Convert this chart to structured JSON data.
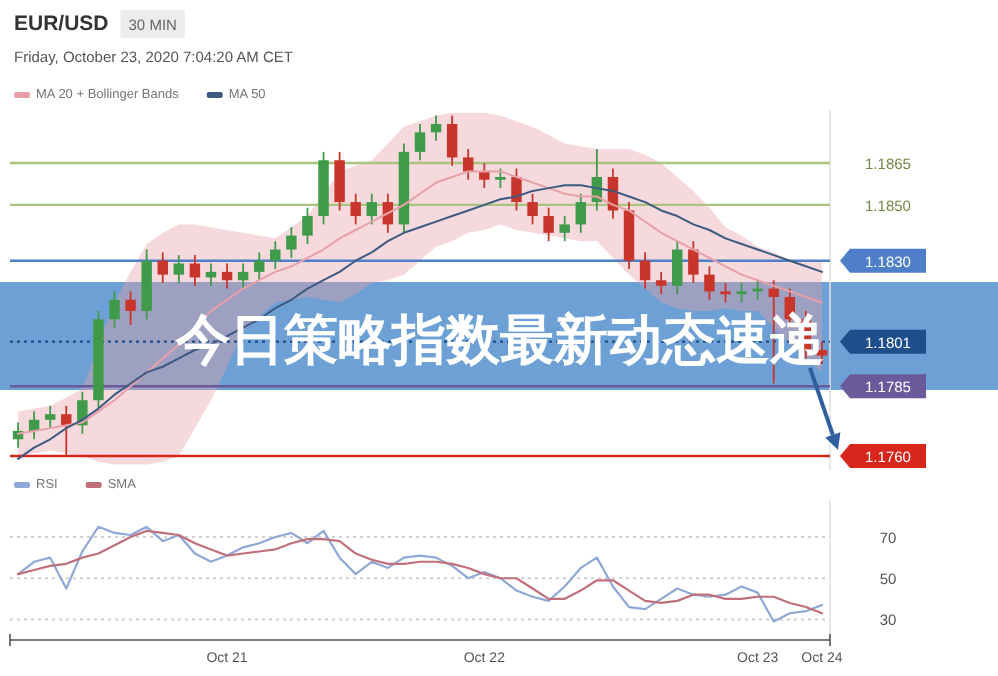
{
  "chart_data": [
    {
      "type": "candlestick",
      "title": "EUR/USD",
      "subtitle": "Friday, October 23, 2020 7:04:20 AM CET",
      "annotations": [
        "30 MIN",
        "今日策略指数最新动态速递"
      ],
      "categories": [
        null,
        null,
        null,
        null,
        null,
        null,
        null,
        null,
        null,
        null,
        null,
        null,
        null,
        null,
        null,
        null,
        null,
        null,
        null,
        null,
        null,
        null,
        null,
        null,
        null,
        null,
        null,
        null,
        null,
        null,
        null,
        null,
        null,
        null,
        null,
        null,
        null,
        null,
        null,
        null,
        null,
        null,
        null,
        null,
        null,
        null,
        null,
        null,
        null,
        null,
        null
      ],
      "ohlc": [
        [
          1.1766,
          1.1772,
          1.1763,
          1.1769
        ],
        [
          1.1769,
          1.1776,
          1.1766,
          1.1773
        ],
        [
          1.1773,
          1.1778,
          1.177,
          1.1775
        ],
        [
          1.1775,
          1.1778,
          1.176,
          1.1771
        ],
        [
          1.1771,
          1.1783,
          1.1768,
          1.178
        ],
        [
          1.178,
          1.1812,
          1.1777,
          1.1809
        ],
        [
          1.1809,
          1.1819,
          1.1806,
          1.1816
        ],
        [
          1.1816,
          1.1819,
          1.1807,
          1.1812
        ],
        [
          1.1812,
          1.1834,
          1.1809,
          1.183
        ],
        [
          1.183,
          1.1833,
          1.1822,
          1.1825
        ],
        [
          1.1825,
          1.1832,
          1.1822,
          1.1829
        ],
        [
          1.1829,
          1.1832,
          1.1821,
          1.1824
        ],
        [
          1.1824,
          1.1829,
          1.1821,
          1.1826
        ],
        [
          1.1826,
          1.1829,
          1.182,
          1.1823
        ],
        [
          1.1823,
          1.1829,
          1.182,
          1.1826
        ],
        [
          1.1826,
          1.1833,
          1.1823,
          1.183
        ],
        [
          1.183,
          1.1837,
          1.1827,
          1.1834
        ],
        [
          1.1834,
          1.1842,
          1.1831,
          1.1839
        ],
        [
          1.1839,
          1.1849,
          1.1836,
          1.1846
        ],
        [
          1.1846,
          1.1869,
          1.1843,
          1.1866
        ],
        [
          1.1866,
          1.1869,
          1.1848,
          1.1851
        ],
        [
          1.1851,
          1.1854,
          1.1843,
          1.1846
        ],
        [
          1.1846,
          1.1854,
          1.1843,
          1.1851
        ],
        [
          1.1851,
          1.1854,
          1.184,
          1.1843
        ],
        [
          1.1843,
          1.1872,
          1.184,
          1.1869
        ],
        [
          1.1869,
          1.1879,
          1.1866,
          1.1876
        ],
        [
          1.1876,
          1.1882,
          1.1873,
          1.1879
        ],
        [
          1.1879,
          1.1882,
          1.1864,
          1.1867
        ],
        [
          1.1867,
          1.187,
          1.1859,
          1.1862
        ],
        [
          1.1862,
          1.1865,
          1.1856,
          1.1859
        ],
        [
          1.1859,
          1.1863,
          1.1856,
          1.186
        ],
        [
          1.186,
          1.1863,
          1.1848,
          1.1851
        ],
        [
          1.1851,
          1.1854,
          1.1843,
          1.1846
        ],
        [
          1.1846,
          1.1849,
          1.1837,
          1.184
        ],
        [
          1.184,
          1.1846,
          1.1837,
          1.1843
        ],
        [
          1.1843,
          1.1854,
          1.184,
          1.1851
        ],
        [
          1.1851,
          1.187,
          1.1848,
          1.186
        ],
        [
          1.186,
          1.1863,
          1.1845,
          1.1848
        ],
        [
          1.1848,
          1.1851,
          1.1827,
          1.183
        ],
        [
          1.183,
          1.1833,
          1.182,
          1.1823
        ],
        [
          1.1823,
          1.1826,
          1.1818,
          1.1821
        ],
        [
          1.1821,
          1.1837,
          1.1818,
          1.1834
        ],
        [
          1.1834,
          1.1837,
          1.1822,
          1.1825
        ],
        [
          1.1825,
          1.1828,
          1.1816,
          1.1819
        ],
        [
          1.1819,
          1.1822,
          1.1815,
          1.1818
        ],
        [
          1.1818,
          1.1822,
          1.1815,
          1.1819
        ],
        [
          1.1819,
          1.1823,
          1.1816,
          1.182
        ],
        [
          1.182,
          1.1823,
          1.1786,
          1.1817
        ],
        [
          1.1817,
          1.182,
          1.1806,
          1.1809
        ],
        [
          1.1809,
          1.1812,
          1.1795,
          1.1798
        ],
        [
          1.1798,
          1.1801,
          1.1793,
          1.1796
        ]
      ],
      "series": [
        {
          "name": "MA 20 + Bollinger Bands",
          "type": "line",
          "color": "#e8a0a8",
          "values": [
            1.1768,
            1.1769,
            1.177,
            1.1771,
            1.1772,
            1.1776,
            1.178,
            1.1785,
            1.179,
            1.1795,
            1.18,
            1.1806,
            1.1812,
            1.1816,
            1.182,
            1.1823,
            1.1826,
            1.1828,
            1.1831,
            1.1834,
            1.1838,
            1.1841,
            1.1844,
            1.1847,
            1.185,
            1.1854,
            1.1858,
            1.186,
            1.1862,
            1.1862,
            1.1862,
            1.186,
            1.1858,
            1.1856,
            1.1854,
            1.1853,
            1.1853,
            1.185,
            1.1848,
            1.1844,
            1.184,
            1.1837,
            1.1834,
            1.1831,
            1.1828,
            1.1825,
            1.1823,
            1.1821,
            1.1819,
            1.1817,
            1.1815
          ],
          "upper": [
            1.1776,
            1.1777,
            1.1778,
            1.1781,
            1.1784,
            1.18,
            1.1815,
            1.1826,
            1.1836,
            1.184,
            1.1843,
            1.1843,
            1.1842,
            1.1841,
            1.184,
            1.1839,
            1.1838,
            1.1842,
            1.1846,
            1.1854,
            1.1862,
            1.1864,
            1.1866,
            1.1872,
            1.1878,
            1.188,
            1.1882,
            1.1883,
            1.1883,
            1.1883,
            1.1882,
            1.188,
            1.1878,
            1.1875,
            1.1872,
            1.1871,
            1.187,
            1.187,
            1.187,
            1.1868,
            1.1865,
            1.186,
            1.1855,
            1.1849,
            1.1842,
            1.1839,
            1.1835,
            1.1833,
            1.183,
            1.183,
            1.183
          ],
          "lower": [
            1.176,
            1.1761,
            1.1762,
            1.1761,
            1.176,
            1.1758,
            1.1757,
            1.1757,
            1.1757,
            1.1758,
            1.176,
            1.177,
            1.178,
            1.1792,
            1.1805,
            1.181,
            1.1815,
            1.1816,
            1.1817,
            1.1816,
            1.1815,
            1.1818,
            1.1822,
            1.1823,
            1.1825,
            1.183,
            1.1835,
            1.1837,
            1.184,
            1.1841,
            1.1843,
            1.1841,
            1.184,
            1.1839,
            1.1838,
            1.1837,
            1.1837,
            1.1831,
            1.1825,
            1.182,
            1.1815,
            1.1813,
            1.1812,
            1.1812,
            1.1813,
            1.1812,
            1.1812,
            1.1806,
            1.18,
            1.1795,
            1.179
          ]
        },
        {
          "name": "MA 50",
          "type": "line",
          "color": "#3d5a80",
          "values": [
            1.1759,
            1.1763,
            1.1766,
            1.177,
            1.1773,
            1.1777,
            1.1782,
            1.1786,
            1.179,
            1.1792,
            1.1795,
            1.1798,
            1.18,
            1.1803,
            1.1806,
            1.1809,
            1.1813,
            1.1816,
            1.182,
            1.1823,
            1.1826,
            1.183,
            1.1833,
            1.1837,
            1.184,
            1.1842,
            1.1844,
            1.1846,
            1.1848,
            1.185,
            1.1852,
            1.1853,
            1.1855,
            1.1856,
            1.1857,
            1.1857,
            1.1856,
            1.1855,
            1.1853,
            1.1851,
            1.1848,
            1.1846,
            1.1843,
            1.1841,
            1.1838,
            1.1836,
            1.1834,
            1.1832,
            1.183,
            1.1828,
            1.1826
          ]
        }
      ],
      "ref_lines": [
        {
          "axis": "y",
          "value": 1.1865,
          "color": "#a9c47f"
        },
        {
          "axis": "y",
          "value": 1.185,
          "color": "#a9c47f"
        },
        {
          "axis": "y",
          "value": 1.183,
          "color": "#4f7fc8"
        },
        {
          "axis": "y",
          "value": 1.1801,
          "color": "#1f4e8c",
          "line_style": "dotted"
        },
        {
          "axis": "y",
          "value": 1.1785,
          "color": "#6a5a9a"
        },
        {
          "axis": "y",
          "value": 1.176,
          "color": "#d9261c"
        }
      ],
      "ylim": [
        1.1755,
        1.1884
      ],
      "yticks": [
        1.1865,
        {
          "value": 1.185,
          "label": "1.1850"
        },
        {
          "value": 1.183,
          "label": "1.1830"
        },
        1.1801,
        1.1785,
        {
          "value": 1.176,
          "label": "1.1760"
        }
      ],
      "legend": "top left"
    },
    {
      "type": "line",
      "categories": [
        null,
        null,
        null,
        null,
        null,
        null,
        null,
        null,
        null,
        null,
        null,
        null,
        null,
        "Oct 21",
        null,
        null,
        null,
        null,
        null,
        null,
        null,
        null,
        null,
        null,
        null,
        null,
        null,
        null,
        null,
        "Oct 22",
        null,
        null,
        null,
        null,
        null,
        null,
        null,
        null,
        null,
        null,
        null,
        null,
        null,
        null,
        null,
        null,
        "Oct 23",
        null,
        null,
        null,
        "Oct 24"
      ],
      "series": [
        {
          "name": "RSI",
          "color": "#8fa8d8",
          "values": [
            52,
            58,
            60,
            45,
            63,
            75,
            72,
            71,
            75,
            68,
            71,
            62,
            58,
            61,
            65,
            67,
            70,
            72,
            67,
            73,
            60,
            52,
            58,
            55,
            60,
            61,
            60,
            56,
            50,
            53,
            50,
            44,
            41,
            39,
            46,
            55,
            60,
            46,
            36,
            35,
            40,
            45,
            42,
            41,
            42,
            46,
            43,
            29,
            33,
            34,
            37
          ]
        },
        {
          "name": "SMA",
          "color": "#c0707a",
          "values": [
            52,
            54,
            56,
            57,
            60,
            62,
            66,
            70,
            73,
            72,
            71,
            67,
            64,
            61,
            62,
            63,
            64,
            67,
            69,
            69,
            68,
            62,
            59,
            57,
            57,
            58,
            58,
            57,
            55,
            52,
            50,
            50,
            45,
            40,
            40,
            44,
            49,
            49,
            44,
            39,
            38,
            39,
            42,
            42,
            40,
            40,
            41,
            41,
            38,
            36,
            33
          ]
        }
      ],
      "ylim": [
        20,
        88
      ],
      "yticks": [
        30,
        50,
        70
      ],
      "grid": "y",
      "legend": "top left"
    }
  ]
}
